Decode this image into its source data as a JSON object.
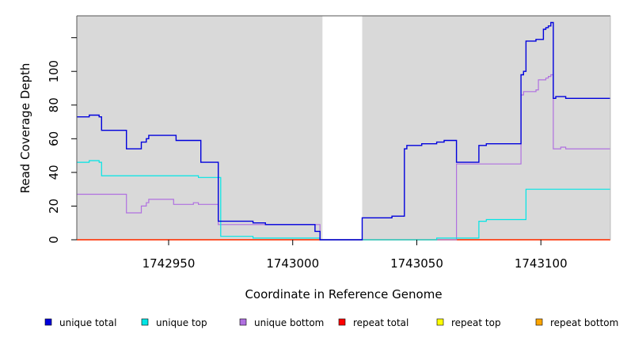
{
  "chart_data": {
    "type": "line",
    "title": "",
    "xlabel": "Coordinate in Reference Genome",
    "ylabel": "Read Coverage Depth",
    "xlim": [
      1742913,
      1743128
    ],
    "ylim": [
      0,
      133
    ],
    "x_ticks": [
      1742950,
      1743000,
      1743050,
      1743100
    ],
    "x_tick_labels": [
      "1742950",
      "1743000",
      "1743050",
      "1743100"
    ],
    "y_ticks": [
      0,
      20,
      40,
      60,
      80,
      100,
      120
    ],
    "y_tick_labels": [
      "0",
      "20",
      "40",
      "60",
      "80",
      "100",
      ""
    ],
    "plot_background": "#d9d9d9",
    "gap_region": {
      "x_start": 1743012,
      "x_end": 1743028
    },
    "legend_position": "bottom",
    "series": [
      {
        "name": "unique total",
        "color": "#0000dd",
        "x": [
          1742913,
          1742918,
          1742922,
          1742923,
          1742933,
          1742939,
          1742941,
          1742942,
          1742953,
          1742963,
          1742970,
          1742984,
          1742989,
          1743009,
          1743011,
          1743028,
          1743040,
          1743045,
          1743046,
          1743052,
          1743058,
          1743061,
          1743066,
          1743075,
          1743078,
          1743092,
          1743093,
          1743094,
          1743098,
          1743101,
          1743102,
          1743103,
          1743104,
          1743105,
          1743106,
          1743110,
          1743128
        ],
        "y": [
          73,
          74,
          73,
          65,
          54,
          58,
          60,
          62,
          59,
          46,
          11,
          10,
          9,
          5,
          0,
          13,
          14,
          54,
          56,
          57,
          58,
          59,
          46,
          56,
          57,
          98,
          100,
          118,
          119,
          125,
          126,
          127,
          129,
          84,
          85,
          84,
          84
        ]
      },
      {
        "name": "unique top",
        "color": "#00e5e5",
        "x": [
          1742913,
          1742918,
          1742922,
          1742923,
          1742962,
          1742971,
          1742984,
          1743011,
          1743028,
          1743058,
          1743075,
          1743078,
          1743092,
          1743094,
          1743128
        ],
        "y": [
          46,
          47,
          46,
          38,
          37,
          2,
          1,
          0,
          0,
          1,
          11,
          12,
          12,
          30,
          30
        ]
      },
      {
        "name": "unique bottom",
        "color": "#b070e0",
        "x": [
          1742913,
          1742933,
          1742939,
          1742941,
          1742942,
          1742952,
          1742960,
          1742962,
          1742970,
          1742984,
          1743011,
          1743066,
          1743092,
          1743093,
          1743098,
          1743099,
          1743102,
          1743103,
          1743104,
          1743105,
          1743108,
          1743110,
          1743128
        ],
        "y": [
          27,
          16,
          20,
          22,
          24,
          21,
          22,
          21,
          9,
          9,
          0,
          45,
          86,
          88,
          89,
          95,
          96,
          97,
          98,
          54,
          55,
          54,
          54
        ]
      },
      {
        "name": "repeat total",
        "color": "#ff0000",
        "x": [
          1742913,
          1743128
        ],
        "y": [
          0,
          0
        ]
      },
      {
        "name": "repeat top",
        "color": "#ffff00",
        "x": [
          1742913,
          1743128
        ],
        "y": [
          0,
          0
        ]
      },
      {
        "name": "repeat bottom",
        "color": "#ffa500",
        "x": [
          1742913,
          1743128
        ],
        "y": [
          0,
          0
        ]
      }
    ]
  }
}
